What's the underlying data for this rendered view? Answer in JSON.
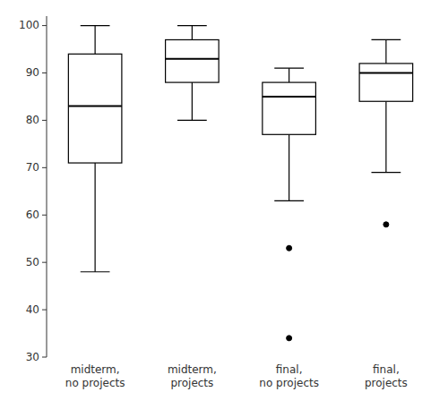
{
  "chart_data": {
    "type": "box",
    "categories": [
      "midterm,\nno projects",
      "midterm,\nprojects",
      "final,\nno projects",
      "final,\nprojects"
    ],
    "whisker_low": [
      48,
      80,
      63,
      69
    ],
    "q1": [
      71,
      88,
      77,
      84
    ],
    "median": [
      83,
      93,
      85,
      90
    ],
    "q3": [
      94,
      97,
      88,
      92
    ],
    "whisker_high": [
      100,
      100,
      91,
      97
    ],
    "outliers": [
      [],
      [],
      [
        53,
        34
      ],
      [
        58
      ]
    ],
    "color": "black",
    "ylim": [
      30,
      102
    ],
    "yticks": [
      30,
      40,
      50,
      60,
      70,
      80,
      90,
      100
    ],
    "grid": false
  }
}
